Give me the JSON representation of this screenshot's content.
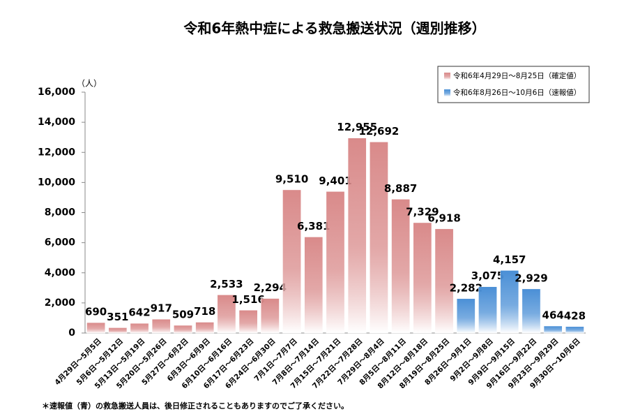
{
  "chart_data": {
    "type": "bar",
    "title": "令和6年熱中症による救急搬送状況（週別推移）",
    "y_label": "（人）",
    "footnote": "＊速報値（青）の救急搬送人員は、後日修正されることもありますのでご了承ください。",
    "categories": [
      "4月29日～5月5日",
      "5月6日～5月12日",
      "5月13日～5月19日",
      "5月20日～5月26日",
      "5月27日～6月2日",
      "6月3日～6月9日",
      "6月10日～6月16日",
      "6月17日～6月23日",
      "6月24日～6月30日",
      "7月1日～7月7日",
      "7月8日～7月14日",
      "7月15日～7月21日",
      "7月22日～7月28日",
      "7月29日～8月4日",
      "8月5日～8月11日",
      "8月12日～8月18日",
      "8月19日～8月25日",
      "8月26日～9月1日",
      "9月2日～9月8日",
      "9月9日～9月15日",
      "9月16日～9月22日",
      "9月23日～9月29日",
      "9月30日～10月6日"
    ],
    "series": [
      {
        "name": "令和6年4月29日～8月25日（確定値）",
        "color": "#d98a8a",
        "label_color": "#c00000",
        "values": [
          690,
          351,
          642,
          917,
          509,
          718,
          2533,
          1516,
          2294,
          9510,
          6381,
          9401,
          12955,
          12692,
          8887,
          7329,
          6918,
          null,
          null,
          null,
          null,
          null,
          null
        ],
        "value_labels": [
          "690",
          "351",
          "642",
          "917",
          "509",
          "718",
          "2,533",
          "1,516",
          "2,294",
          "9,510",
          "6,381",
          "9,401",
          "12,955",
          "12,692",
          "8,887",
          "7,329",
          "6,918",
          null,
          null,
          null,
          null,
          null,
          null
        ]
      },
      {
        "name": "令和6年8月26日～10月6日（速報値）",
        "color": "#4a8fd6",
        "label_color": "#2e6699",
        "values": [
          null,
          null,
          null,
          null,
          null,
          null,
          null,
          null,
          null,
          null,
          null,
          null,
          null,
          null,
          null,
          null,
          null,
          2282,
          3075,
          4157,
          2929,
          464,
          428
        ],
        "value_labels": [
          null,
          null,
          null,
          null,
          null,
          null,
          null,
          null,
          null,
          null,
          null,
          null,
          null,
          null,
          null,
          null,
          null,
          "2,282",
          "3,075",
          "4,157",
          "2,929",
          "464",
          "428"
        ]
      }
    ],
    "ylim": [
      0,
      16000
    ],
    "yticks": [
      0,
      {
        "value": 2000,
        "label": "2,000"
      },
      {
        "value": 4000,
        "label": "4,000"
      },
      {
        "value": 6000,
        "label": "6,000"
      },
      {
        "value": 8000,
        "label": "8,000"
      },
      {
        "value": 10000,
        "label": "10,000"
      },
      {
        "value": 12000,
        "label": "12,000"
      },
      {
        "value": 14000,
        "label": "14,000"
      },
      {
        "value": 16000,
        "label": "16,000"
      }
    ],
    "grid": false,
    "legend": "upper right"
  }
}
